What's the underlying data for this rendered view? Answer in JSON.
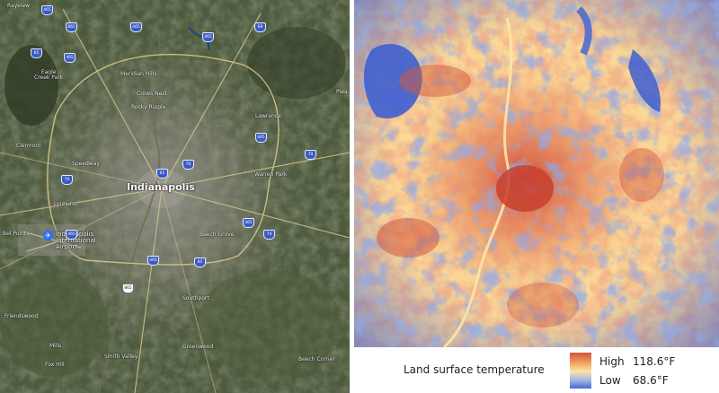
{
  "satellite": {
    "city_label": "Indianapolis",
    "places": [
      {
        "key": "eagle-creek",
        "text": "Eagle\nCreek Park"
      },
      {
        "key": "meridian-hills",
        "text": "Meridian Hills"
      },
      {
        "key": "crows-nest",
        "text": "Crows Nest"
      },
      {
        "key": "rocky-ripple",
        "text": "Rocky Ripple"
      },
      {
        "key": "speedway",
        "text": "Speedway"
      },
      {
        "key": "clermont",
        "text": "Clermont"
      },
      {
        "key": "lawrence",
        "text": "Lawrence"
      },
      {
        "key": "warren-park",
        "text": "Warren Park"
      },
      {
        "key": "beech-grove",
        "text": "Beech Grove"
      },
      {
        "key": "southport",
        "text": "Southport"
      },
      {
        "key": "greenwood",
        "text": "Greenwood"
      },
      {
        "key": "smith-valley",
        "text": "Smith Valley"
      },
      {
        "key": "friendswood",
        "text": "Friendswood"
      },
      {
        "key": "fox-hill",
        "text": "Fox Hill"
      },
      {
        "key": "bel-points",
        "text": "Bel Points"
      },
      {
        "key": "mooresville-area",
        "text": "Mills"
      },
      {
        "key": "bayview",
        "text": "Rayview"
      },
      {
        "key": "plea",
        "text": "Plea"
      },
      {
        "key": "beech-corner",
        "text": "Beech Corner"
      },
      {
        "key": "lynhurst",
        "text": "Lynhurst"
      }
    ],
    "airport_label": "Indianapolis\nInternational\nAirport",
    "shields": [
      {
        "key": "i465-nw",
        "text": "465"
      },
      {
        "key": "i865",
        "text": "865"
      },
      {
        "key": "i465-n1",
        "text": "465"
      },
      {
        "key": "i465-n2",
        "text": "465"
      },
      {
        "key": "i69",
        "text": "69"
      },
      {
        "key": "i465-w",
        "text": "465"
      },
      {
        "key": "i65-n",
        "text": "65"
      },
      {
        "key": "i70-w",
        "text": "70"
      },
      {
        "key": "i65-c",
        "text": "65"
      },
      {
        "key": "i70-c",
        "text": "70"
      },
      {
        "key": "i465-ne",
        "text": "465"
      },
      {
        "key": "i70-e",
        "text": "70"
      },
      {
        "key": "i465-e",
        "text": "465"
      },
      {
        "key": "i74",
        "text": "74"
      },
      {
        "key": "i465-sw",
        "text": "465"
      },
      {
        "key": "i465-s",
        "text": "465"
      },
      {
        "key": "i65-s",
        "text": "65"
      },
      {
        "key": "i865-w",
        "text": "865"
      }
    ]
  },
  "legend": {
    "title": "Land surface temperature",
    "high_label": "High",
    "high_value": "118.6°F",
    "low_label": "Low",
    "low_value": "68.6°F",
    "colors": {
      "high": "#d6533a",
      "mid": "#fde5a6",
      "low": "#4766d1"
    }
  }
}
